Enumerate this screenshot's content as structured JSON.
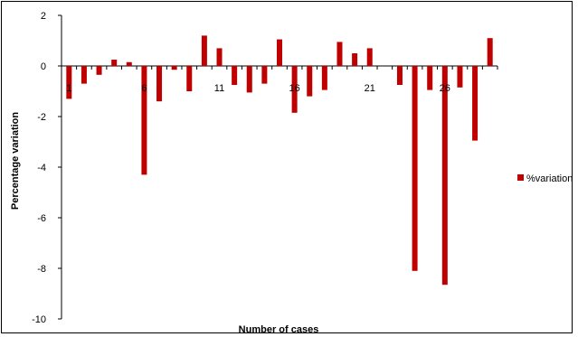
{
  "chart_data": {
    "type": "bar",
    "title": "",
    "xlabel": "Number of cases",
    "ylabel": "Percentage variation",
    "ylim": [
      -10,
      2
    ],
    "yticks": [
      2,
      0,
      -2,
      -4,
      -6,
      -8,
      -10
    ],
    "xtick_labels": [
      "1",
      "6",
      "11",
      "16",
      "21",
      "26"
    ],
    "xtick_positions": [
      1,
      6,
      11,
      16,
      21,
      26
    ],
    "categories": [
      1,
      2,
      3,
      4,
      5,
      6,
      7,
      8,
      9,
      10,
      11,
      12,
      13,
      14,
      15,
      16,
      17,
      18,
      19,
      20,
      21,
      22,
      23,
      24,
      25,
      26,
      27,
      28,
      29
    ],
    "series": [
      {
        "name": "%variation",
        "color": "#c00000",
        "values": [
          -1.3,
          -0.7,
          -0.35,
          0.25,
          0.15,
          -4.3,
          -1.4,
          -0.15,
          -1.0,
          1.2,
          0.7,
          -0.75,
          -1.05,
          -0.7,
          1.05,
          -1.85,
          -1.2,
          -0.95,
          0.95,
          0.5,
          0.7,
          0,
          -0.75,
          -8.1,
          -0.95,
          -8.65,
          -0.85,
          -2.95,
          1.1
        ]
      }
    ],
    "legend_position": "right",
    "grid": false
  }
}
